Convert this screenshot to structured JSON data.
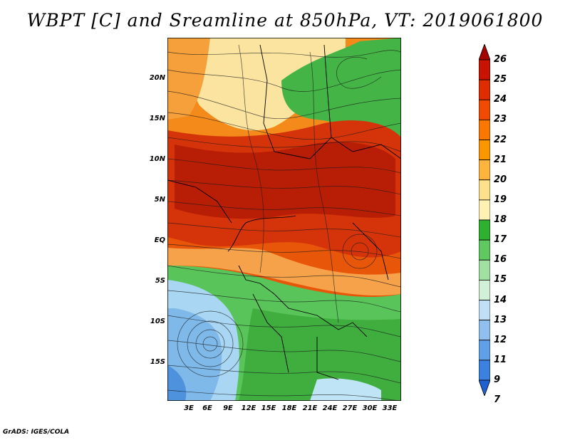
{
  "title": "WBPT [C] and Sreamline at 850hPa, VT: 2019061800",
  "credit": "GrADS: IGES/COLA",
  "lat_labels": [
    "20N",
    "15N",
    "10N",
    "5N",
    "EQ",
    "5S",
    "10S",
    "15S"
  ],
  "lon_labels": [
    "3E",
    "6E",
    "9E",
    "12E",
    "15E",
    "18E",
    "21E",
    "24E",
    "27E",
    "30E",
    "33E"
  ],
  "colorbar": {
    "labels": [
      "26",
      "25",
      "24",
      "23",
      "22",
      "21",
      "20",
      "19",
      "18",
      "17",
      "16",
      "15",
      "14",
      "13",
      "12",
      "11",
      "9",
      "7"
    ],
    "colors": [
      "#a50000",
      "#c81400",
      "#e02d00",
      "#f04b00",
      "#fa7800",
      "#fc9600",
      "#fdb43c",
      "#fde08a",
      "#fff0b4",
      "#30b030",
      "#60c860",
      "#a0e0a0",
      "#d0f0d8",
      "#c0e0f8",
      "#90c0f0",
      "#60a0e8",
      "#3c80e0",
      "#2060d0"
    ]
  },
  "fields": {
    "regions": [
      "warm-belt",
      "sahel-yellow",
      "northeast-green",
      "southern-green",
      "southwest-blue"
    ]
  }
}
